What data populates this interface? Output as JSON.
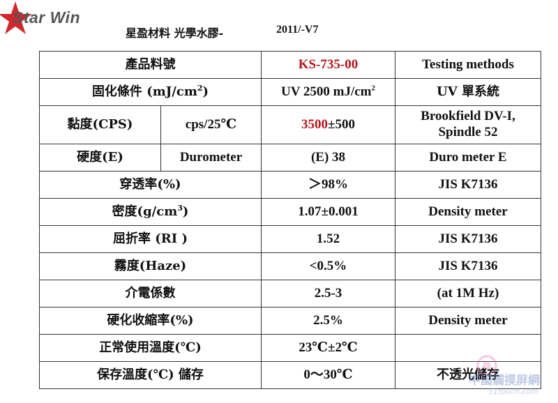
{
  "logo": {
    "text": "Star Win"
  },
  "header": {
    "title": "星盈材料 光學水膠-",
    "version": "2011/-V7"
  },
  "table": {
    "product": {
      "label": "產品料號",
      "value": "KS-735-00",
      "method": "Testing methods"
    },
    "curing": {
      "label_pre": "固化條件 (mJ/cm",
      "label_sup": "2",
      "label_post": ")",
      "value_pre": "UV 2500 mJ/cm",
      "value_sup": "2",
      "method": "UV 單系統"
    },
    "viscosity": {
      "label": "黏度(CPS)",
      "condition": "cps/25℃",
      "value_main": "3500",
      "value_tol": "±500",
      "method_line1": "Brookfield DV-I,",
      "method_line2": "Spindle 52"
    },
    "hardness": {
      "label": "硬度(E)",
      "condition": "Durometer",
      "value": "(E) 38",
      "method": "Duro meter E"
    },
    "transmittance": {
      "label": "穿透率(%)",
      "value": "＞98%",
      "method": "JIS K7136"
    },
    "density": {
      "label_pre": "密度(g/cm",
      "label_sup": "3",
      "label_post": ")",
      "value": "1.07±0.001",
      "method": "Density meter"
    },
    "refractive": {
      "label": "屈折率 (RI )",
      "value": "1.52",
      "method": "JIS K7136"
    },
    "haze": {
      "label": "霧度(Haze)",
      "value": "<0.5%",
      "method": "JIS K7136"
    },
    "dielectric": {
      "label": "介電係數",
      "value": "2.5-3",
      "method": "(at  1M Hz)"
    },
    "shrinkage": {
      "label": "硬化收縮率(%)",
      "value": "2.5%",
      "method": "Density meter"
    },
    "operating_temp": {
      "label": "正常使用溫度(℃)",
      "value": "23℃±2℃",
      "method": ""
    },
    "storage": {
      "label": "保存溫度(℃) 儲存",
      "value": "0～30℃",
      "method": "不透光儲存"
    }
  },
  "watermark": {
    "text": "中國觸摸屏網",
    "url": "51touch.com"
  },
  "colors": {
    "accent_red": "#b5161b",
    "logo_red": "#d1282c",
    "logo_grey": "#555555"
  }
}
